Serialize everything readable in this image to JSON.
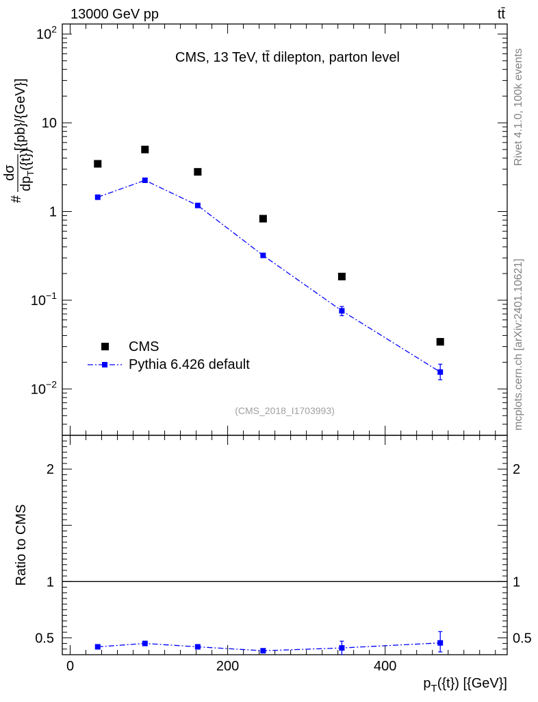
{
  "header": {
    "energy_label": "13000 GeV pp",
    "process_label": "tt̄"
  },
  "side_labels": {
    "rivet": "Rivet 4.1.0,  100k events",
    "mcplots": "mcplots.cern.ch [arXiv:2401.10621]"
  },
  "chart_data": [
    {
      "type": "scatter",
      "panel": "main",
      "title": "CMS, 13 TeV, tt̄ dilepton, parton level",
      "watermark": "(CMS_2018_I1703993)",
      "ylabel": "#dσ/dp_T({t}) [{pb}/{GeV}]",
      "ylabel_parts": {
        "prefix": "#",
        "num": "dσ",
        "den_main": "dp",
        "den_sub": "T",
        "den_rest": "({t})",
        "rest": "[{pb}/{GeV}]"
      },
      "yscale": "log",
      "ylim": [
        0.003,
        130
      ],
      "xlim": [
        -10,
        555
      ],
      "y_tick_labels": [
        {
          "value": 100,
          "base": "10",
          "exp": "2"
        },
        {
          "value": 10,
          "base": "10",
          "exp": ""
        },
        {
          "value": 1,
          "base": "1",
          "exp": ""
        },
        {
          "value": 0.1,
          "base": "10",
          "exp": "−1"
        },
        {
          "value": 0.01,
          "base": "10",
          "exp": "−2"
        }
      ],
      "legend_position": "bottom-left",
      "series": [
        {
          "name": "CMS",
          "color": "#000000",
          "marker": "square",
          "x": [
            35,
            95,
            162,
            245,
            345,
            470
          ],
          "y": [
            3.45,
            5.0,
            2.8,
            0.83,
            0.185,
            0.034
          ],
          "yerr_low": [
            0,
            0,
            0,
            0,
            0,
            0
          ],
          "yerr_high": [
            0,
            0,
            0,
            0,
            0,
            0
          ]
        },
        {
          "name": "Pythia 6.426 default",
          "color": "#0000ff",
          "marker": "square",
          "line": "dash-dot",
          "x": [
            35,
            95,
            162,
            245,
            345,
            470
          ],
          "y": [
            1.45,
            2.25,
            1.17,
            0.32,
            0.076,
            0.0155
          ],
          "yerr_low": [
            0.05,
            0.06,
            0.04,
            0.012,
            0.009,
            0.0028
          ],
          "yerr_high": [
            0.05,
            0.06,
            0.04,
            0.012,
            0.009,
            0.0035
          ]
        }
      ]
    },
    {
      "type": "scatter",
      "panel": "ratio",
      "ylabel": "Ratio to CMS",
      "xlabel": "p_T({t}) [{GeV}]",
      "xlabel_parts": {
        "main": "p",
        "sub": "T",
        "rest": "({t}) [{GeV}]"
      },
      "ylim": [
        0.35,
        2.3
      ],
      "xlim": [
        -10,
        555
      ],
      "reference_line": 1,
      "y_tick_labels": [
        {
          "value": 2,
          "text": "2"
        },
        {
          "value": 1,
          "text": "1"
        },
        {
          "value": 0.5,
          "text": "0.5"
        }
      ],
      "x_tick_labels": [
        {
          "value": 0,
          "text": "0"
        },
        {
          "value": 200,
          "text": "200"
        },
        {
          "value": 400,
          "text": "400"
        }
      ],
      "series": [
        {
          "name": "Pythia 6.426 default",
          "color": "#0000ff",
          "line": "dash-dot",
          "x": [
            35,
            95,
            162,
            245,
            345,
            470
          ],
          "y": [
            0.42,
            0.45,
            0.42,
            0.385,
            0.41,
            0.455
          ],
          "yerr_low": [
            0.015,
            0.012,
            0.015,
            0.01,
            0.06,
            0.08
          ],
          "yerr_high": [
            0.015,
            0.012,
            0.015,
            0.01,
            0.06,
            0.1
          ]
        }
      ]
    }
  ]
}
